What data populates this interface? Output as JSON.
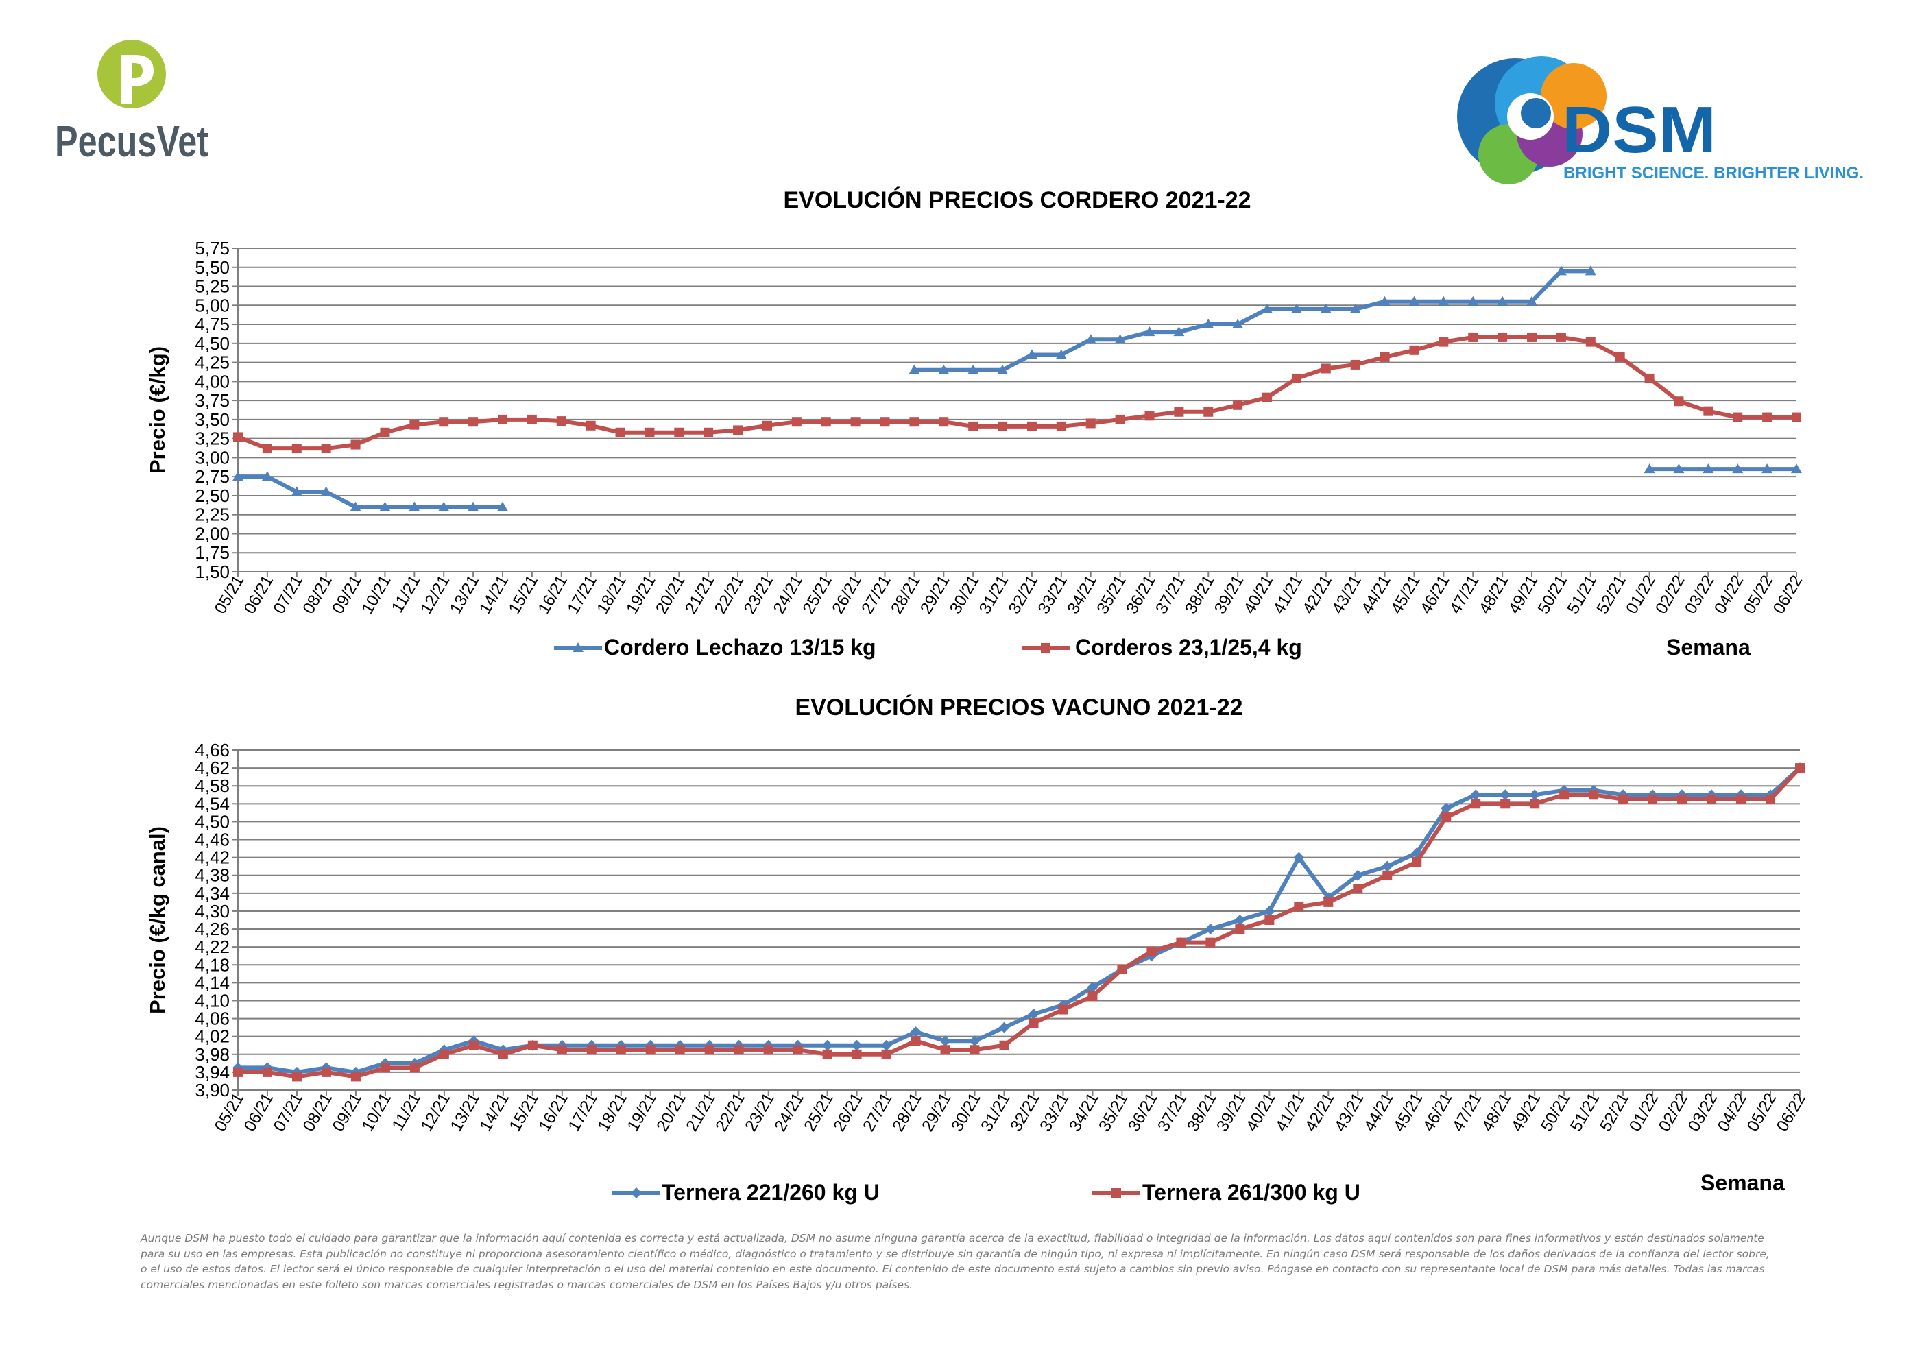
{
  "brand_left": {
    "name": "PecusVet",
    "mark": "P"
  },
  "brand_right": {
    "name": "DSM",
    "tagline": "BRIGHT SCIENCE. BRIGHTER LIVING."
  },
  "colors": {
    "blue": "#4f81bd",
    "red": "#c0504d",
    "grid": "#7f7f7f",
    "text": "#000000"
  },
  "chart_data": [
    {
      "type": "line",
      "title": "EVOLUCIÓN PRECIOS CORDERO 2021-22",
      "ylabel": "Precio (€/kg)",
      "xlabel": "Semana",
      "ylim": [
        1.5,
        5.75
      ],
      "yticks": [
        "5,75",
        "5,50",
        "5,25",
        "5,00",
        "4,75",
        "4,50",
        "4,25",
        "4,00",
        "3,75",
        "3,50",
        "3,25",
        "3,00",
        "2,75",
        "2,50",
        "2,25",
        "2,00",
        "1,75",
        "1,50"
      ],
      "categories": [
        "05/21",
        "06/21",
        "07/21",
        "08/21",
        "09/21",
        "10/21",
        "11/21",
        "12/21",
        "13/21",
        "14/21",
        "15/21",
        "16/21",
        "17/21",
        "18/21",
        "19/21",
        "20/21",
        "21/21",
        "22/21",
        "23/21",
        "24/21",
        "25/21",
        "26/21",
        "27/21",
        "28/21",
        "29/21",
        "30/21",
        "31/21",
        "32/21",
        "33/21",
        "34/21",
        "35/21",
        "36/21",
        "37/21",
        "38/21",
        "39/21",
        "40/21",
        "41/21",
        "42/21",
        "43/21",
        "44/21",
        "45/21",
        "46/21",
        "47/21",
        "48/21",
        "49/21",
        "50/21",
        "51/21",
        "52/21",
        "01/22",
        "02/22",
        "03/22",
        "04/22",
        "05/22",
        "06/22"
      ],
      "series": [
        {
          "name": "Cordero Lechazo 13/15 kg",
          "color": "#4f81bd",
          "marker": "triangle",
          "values": [
            2.75,
            2.75,
            2.55,
            2.55,
            2.35,
            2.35,
            2.35,
            2.35,
            2.35,
            2.35,
            null,
            null,
            null,
            null,
            null,
            null,
            null,
            null,
            null,
            null,
            null,
            null,
            null,
            4.15,
            4.15,
            4.15,
            4.15,
            4.35,
            4.35,
            4.55,
            4.55,
            4.65,
            4.65,
            4.75,
            4.75,
            4.95,
            4.95,
            4.95,
            4.95,
            5.05,
            5.05,
            5.05,
            5.05,
            5.05,
            5.05,
            5.45,
            5.45,
            null,
            2.85,
            2.85,
            2.85,
            2.85,
            2.85,
            2.85
          ]
        },
        {
          "name": "Corderos 23,1/25,4 kg",
          "color": "#c0504d",
          "marker": "square",
          "values": [
            3.27,
            3.12,
            3.12,
            3.12,
            3.17,
            3.33,
            3.43,
            3.47,
            3.47,
            3.5,
            3.5,
            3.48,
            3.42,
            3.33,
            3.33,
            3.33,
            3.33,
            3.36,
            3.42,
            3.47,
            3.47,
            3.47,
            3.47,
            3.47,
            3.47,
            3.41,
            3.41,
            3.41,
            3.41,
            3.45,
            3.5,
            3.55,
            3.6,
            3.6,
            3.69,
            3.79,
            4.04,
            4.17,
            4.22,
            4.32,
            4.41,
            4.52,
            4.58,
            4.58,
            4.58,
            4.58,
            4.52,
            4.32,
            4.04,
            3.74,
            3.61,
            3.53,
            3.53,
            3.53
          ]
        }
      ]
    },
    {
      "type": "line",
      "title": "EVOLUCIÓN PRECIOS VACUNO 2021-22",
      "ylabel": "Precio (€/kg canal)",
      "xlabel": "Semana",
      "ylim": [
        3.9,
        4.66
      ],
      "yticks": [
        "4,66",
        "4,62",
        "4,58",
        "4,54",
        "4,50",
        "4,46",
        "4,42",
        "4,38",
        "4,34",
        "4,30",
        "4,26",
        "4,22",
        "4,18",
        "4,14",
        "4,10",
        "4,06",
        "4,02",
        "3,98",
        "3,94",
        "3,90"
      ],
      "categories": [
        "05/21",
        "06/21",
        "07/21",
        "08/21",
        "09/21",
        "10/21",
        "11/21",
        "12/21",
        "13/21",
        "14/21",
        "15/21",
        "16/21",
        "17/21",
        "18/21",
        "19/21",
        "20/21",
        "21/21",
        "22/21",
        "23/21",
        "24/21",
        "25/21",
        "26/21",
        "27/21",
        "28/21",
        "29/21",
        "30/21",
        "31/21",
        "32/21",
        "33/21",
        "34/21",
        "35/21",
        "36/21",
        "37/21",
        "38/21",
        "39/21",
        "40/21",
        "41/21",
        "42/21",
        "43/21",
        "44/21",
        "45/21",
        "46/21",
        "47/21",
        "48/21",
        "49/21",
        "50/21",
        "51/21",
        "52/21",
        "01/22",
        "02/22",
        "03/22",
        "04/22",
        "05/22",
        "06/22"
      ],
      "series": [
        {
          "name": "Ternera 221/260 kg U",
          "color": "#4f81bd",
          "marker": "diamond",
          "values": [
            3.95,
            3.95,
            3.94,
            3.95,
            3.94,
            3.96,
            3.96,
            3.99,
            4.01,
            3.99,
            4.0,
            4.0,
            4.0,
            4.0,
            4.0,
            4.0,
            4.0,
            4.0,
            4.0,
            4.0,
            4.0,
            4.0,
            4.0,
            4.03,
            4.01,
            4.01,
            4.04,
            4.07,
            4.09,
            4.13,
            4.17,
            4.2,
            4.23,
            4.26,
            4.28,
            4.3,
            4.42,
            4.33,
            4.38,
            4.4,
            4.43,
            4.53,
            4.56,
            4.56,
            4.56,
            4.57,
            4.57,
            4.56,
            4.56,
            4.56,
            4.56,
            4.56,
            4.56,
            4.62
          ]
        },
        {
          "name": "Ternera 261/300 kg U",
          "color": "#c0504d",
          "marker": "square",
          "values": [
            3.94,
            3.94,
            3.93,
            3.94,
            3.93,
            3.95,
            3.95,
            3.98,
            4.0,
            3.98,
            4.0,
            3.99,
            3.99,
            3.99,
            3.99,
            3.99,
            3.99,
            3.99,
            3.99,
            3.99,
            3.98,
            3.98,
            3.98,
            4.01,
            3.99,
            3.99,
            4.0,
            4.05,
            4.08,
            4.11,
            4.17,
            4.21,
            4.23,
            4.23,
            4.26,
            4.28,
            4.31,
            4.32,
            4.35,
            4.38,
            4.41,
            4.51,
            4.54,
            4.54,
            4.54,
            4.56,
            4.56,
            4.55,
            4.55,
            4.55,
            4.55,
            4.55,
            4.55,
            4.62
          ]
        }
      ]
    }
  ],
  "disclaimer": "Aunque DSM ha puesto todo el cuidado para garantizar que la información aquí contenida es correcta y está actualizada, DSM no asume ninguna garantía acerca de la exactitud, fiabilidad o integridad de la información. Los datos aquí contenidos son para fines informativos y están destinados solamente para su uso en las empresas. Esta publicación no constituye ni proporciona asesoramiento científico o médico, diagnóstico o tratamiento y se distribuye sin garantía de ningún tipo, ni expresa ni implícitamente. En ningún caso DSM será responsable de los daños derivados de la confianza del lector sobre, o el uso de estos datos. El lector será el único responsable de cualquier interpretación o el uso del material contenido en este documento. El contenido de este documento está sujeto a cambios sin previo aviso. Póngase en contacto con su representante local de DSM para más detalles. Todas las marcas comerciales mencionadas en este folleto son marcas comerciales registradas o marcas comerciales de DSM en los Países Bajos y/u otros países."
}
